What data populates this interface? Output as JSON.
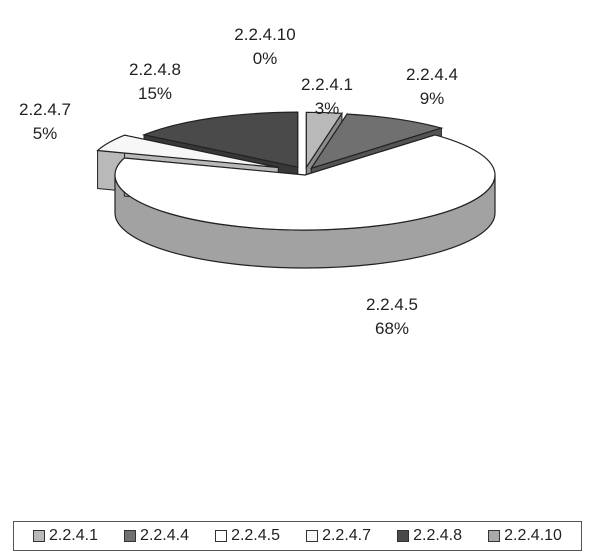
{
  "chart_data": {
    "type": "pie",
    "title": "",
    "categories": [
      "2.2.4.1",
      "2.2.4.4",
      "2.2.4.5",
      "2.2.4.7",
      "2.2.4.8",
      "2.2.4.10"
    ],
    "values": [
      3,
      9,
      68,
      5,
      15,
      0
    ],
    "value_labels": [
      "3%",
      "9%",
      "68%",
      "5%",
      "15%",
      "0%"
    ],
    "colors": [
      "#b9b9b9",
      "#707070",
      "#ffffff",
      "#f7f7f7",
      "#4a4a4a",
      "#a9a9a9"
    ],
    "legend_position": "bottom",
    "exploded": true,
    "style": "3d"
  }
}
